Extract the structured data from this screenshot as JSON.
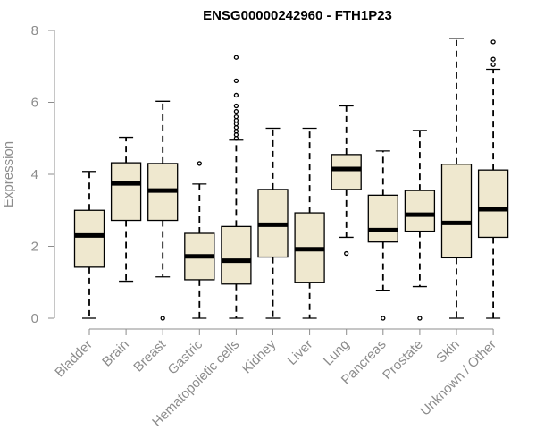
{
  "chart_data": {
    "type": "boxplot",
    "title": "ENSG00000242960 - FTH1P23",
    "xlabel": "",
    "ylabel": "Expression",
    "ylim": [
      0,
      8
    ],
    "yticks": [
      0,
      2,
      4,
      6,
      8
    ],
    "categories": [
      "Bladder",
      "Brain",
      "Breast",
      "Gastric",
      "Hematopoietic cells",
      "Kidney",
      "Liver",
      "Lung",
      "Pancreas",
      "Prostate",
      "Skin",
      "Unknown / Other"
    ],
    "boxes": [
      {
        "min": 0.0,
        "q1": 1.42,
        "median": 2.3,
        "q3": 3.0,
        "max": 4.08,
        "outliers": []
      },
      {
        "min": 1.03,
        "q1": 2.72,
        "median": 3.75,
        "q3": 4.32,
        "max": 5.03,
        "outliers": []
      },
      {
        "min": 1.15,
        "q1": 2.72,
        "median": 3.55,
        "q3": 4.3,
        "max": 6.03,
        "outliers": [
          0.0
        ]
      },
      {
        "min": 0.0,
        "q1": 1.07,
        "median": 1.72,
        "q3": 2.36,
        "max": 3.73,
        "outliers": [
          4.3
        ]
      },
      {
        "min": 0.0,
        "q1": 0.95,
        "median": 1.6,
        "q3": 2.55,
        "max": 4.95,
        "outliers": [
          5.0,
          5.1,
          5.2,
          5.3,
          5.4,
          5.5,
          5.6,
          5.75,
          5.9,
          6.2,
          6.6,
          7.25
        ]
      },
      {
        "min": 0.0,
        "q1": 1.7,
        "median": 2.6,
        "q3": 3.58,
        "max": 5.28,
        "outliers": []
      },
      {
        "min": 0.0,
        "q1": 1.0,
        "median": 1.92,
        "q3": 2.93,
        "max": 5.28,
        "outliers": []
      },
      {
        "min": 2.25,
        "q1": 3.58,
        "median": 4.15,
        "q3": 4.55,
        "max": 5.9,
        "outliers": [
          1.8
        ]
      },
      {
        "min": 0.78,
        "q1": 2.12,
        "median": 2.45,
        "q3": 3.42,
        "max": 4.65,
        "outliers": [
          0.0
        ]
      },
      {
        "min": 0.88,
        "q1": 2.42,
        "median": 2.88,
        "q3": 3.55,
        "max": 5.22,
        "outliers": [
          0.0
        ]
      },
      {
        "min": 0.0,
        "q1": 1.68,
        "median": 2.65,
        "q3": 4.28,
        "max": 7.78,
        "outliers": []
      },
      {
        "min": 0.0,
        "q1": 2.25,
        "median": 3.03,
        "q3": 4.12,
        "max": 6.92,
        "outliers": [
          7.05,
          7.2,
          7.68
        ]
      }
    ],
    "colors": {
      "box_fill": "#efe8cf",
      "box_stroke": "#000000",
      "axis": "#8c8c8c"
    }
  }
}
